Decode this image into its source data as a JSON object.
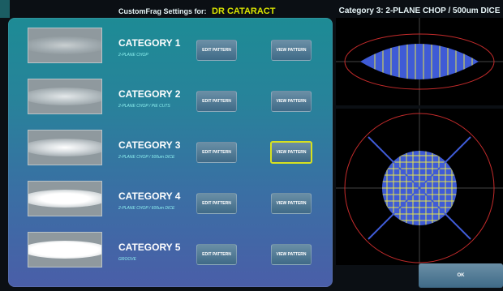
{
  "header": {
    "settings_label": "CustomFrag Settings for:",
    "doctor_name": "DR CATARACT",
    "pattern_title": "Category 3: 2-PLANE CHOP / 500um DICE"
  },
  "categories": [
    {
      "title": "CATEGORY 1",
      "subtitle": "2-PLANE CHOP",
      "edit_label": "EDIT PATTERN",
      "view_label": "VIEW PATTERN"
    },
    {
      "title": "CATEGORY 2",
      "subtitle": "2-PLANE CHOP / PIE CUTS",
      "edit_label": "EDIT PATTERN",
      "view_label": "VIEW PATTERN"
    },
    {
      "title": "CATEGORY 3",
      "subtitle": "2-PLANE CHOP / 500um DICE",
      "edit_label": "EDIT PATTERN",
      "view_label": "VIEW PATTERN"
    },
    {
      "title": "CATEGORY 4",
      "subtitle": "2-PLANE CHOP / 600um DICE",
      "edit_label": "EDIT PATTERN",
      "view_label": "VIEW PATTERN"
    },
    {
      "title": "CATEGORY 5",
      "subtitle": "GROOVE",
      "edit_label": "EDIT PATTERN",
      "view_label": "VIEW PATTERN"
    }
  ],
  "ok_label": "OK",
  "colors": {
    "accent": "#d9e400",
    "pattern_fill": "#3f5bd6",
    "grid_lines": "#e6e34a",
    "boundary": "#c42b2b"
  }
}
